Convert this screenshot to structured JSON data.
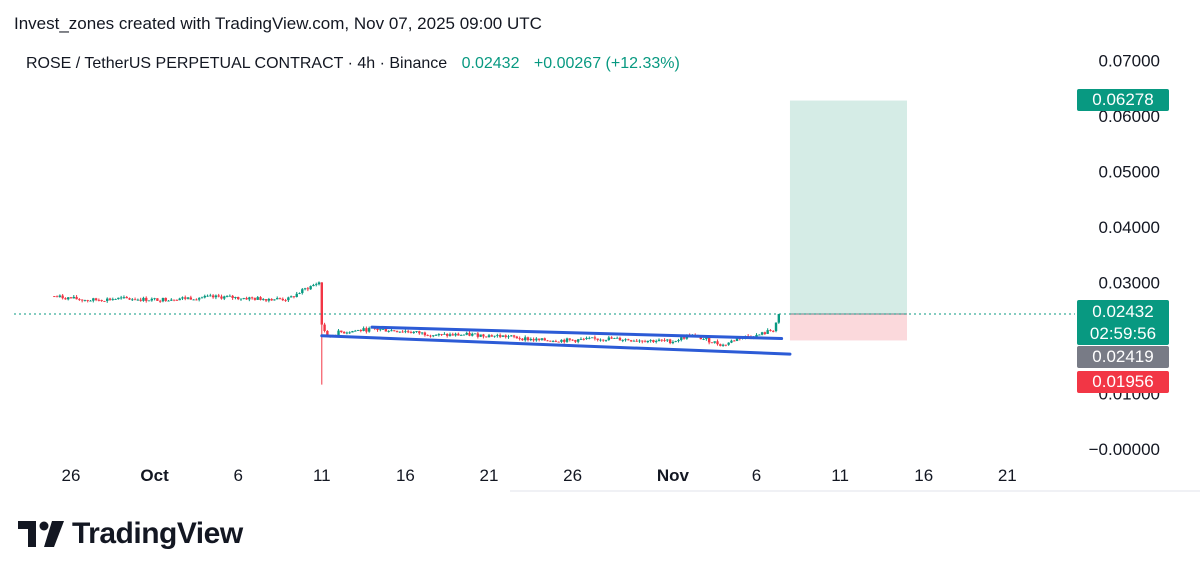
{
  "header": {
    "attribution": "Invest_zones created with TradingView.com, Nov 07, 2025 09:00 UTC"
  },
  "legend": {
    "symbol": "ROSE / TetherUS PERPETUAL CONTRACT · 4h · Binance",
    "price": "0.02432",
    "change": "+0.00267 (+12.33%)"
  },
  "price_tags": {
    "target": "0.06278",
    "last": "0.02432",
    "countdown": "02:59:56",
    "prev": "0.02419",
    "stop": "0.01956"
  },
  "colors": {
    "up": "#089981",
    "down": "#f23645",
    "channel": "#2c5bd6",
    "target_zone": "#d5ece6",
    "stop_zone": "#fbd9dc",
    "tag_gray": "#787b86"
  },
  "footer": {
    "logo_text": "TradingView",
    "logo_icon": "tradingview-logo-icon"
  },
  "chart_data": {
    "type": "candlestick",
    "title": "ROSE / TetherUS PERPETUAL CONTRACT · 4h · Binance",
    "xlabel": "",
    "ylabel": "",
    "x_ticks": [
      {
        "label": "26",
        "date": "2025-09-26"
      },
      {
        "label": "Oct",
        "date": "2025-10-01"
      },
      {
        "label": "6",
        "date": "2025-10-06"
      },
      {
        "label": "11",
        "date": "2025-10-11"
      },
      {
        "label": "16",
        "date": "2025-10-16"
      },
      {
        "label": "21",
        "date": "2025-10-21"
      },
      {
        "label": "26",
        "date": "2025-10-26"
      },
      {
        "label": "Nov",
        "date": "2025-11-01"
      },
      {
        "label": "6",
        "date": "2025-11-06"
      },
      {
        "label": "11",
        "date": "2025-11-11"
      },
      {
        "label": "16",
        "date": "2025-11-16"
      },
      {
        "label": "21",
        "date": "2025-11-21"
      }
    ],
    "y_ticks": [
      "0.07000",
      "0.06000",
      "0.05000",
      "0.04000",
      "0.03000",
      "0.01000",
      "−0.00000"
    ],
    "ylim": [
      -0.0002,
      0.0725
    ],
    "last_price": 0.02432,
    "price_path": [
      [
        "2025-09-25",
        0.0275
      ],
      [
        "2025-09-27",
        0.0268
      ],
      [
        "2025-09-29",
        0.0271
      ],
      [
        "2025-10-01",
        0.0269
      ],
      [
        "2025-10-03",
        0.0272
      ],
      [
        "2025-10-05",
        0.0274
      ],
      [
        "2025-10-07",
        0.0271
      ],
      [
        "2025-10-09",
        0.027
      ],
      [
        "2025-10-10",
        0.0288
      ],
      [
        "2025-10-10T20:00",
        0.03
      ],
      [
        "2025-10-11",
        0.0225
      ],
      [
        "2025-10-11T08:00",
        0.0202
      ],
      [
        "2025-10-12",
        0.021
      ],
      [
        "2025-10-14",
        0.0216
      ],
      [
        "2025-10-16",
        0.0212
      ],
      [
        "2025-10-18",
        0.0205
      ],
      [
        "2025-10-20",
        0.0206
      ],
      [
        "2025-10-22",
        0.0203
      ],
      [
        "2025-10-24",
        0.0196
      ],
      [
        "2025-10-26",
        0.0196
      ],
      [
        "2025-10-28",
        0.0199
      ],
      [
        "2025-10-30",
        0.0196
      ],
      [
        "2025-11-01",
        0.0194
      ],
      [
        "2025-11-02",
        0.0205
      ],
      [
        "2025-11-03",
        0.0197
      ],
      [
        "2025-11-04",
        0.0187
      ],
      [
        "2025-11-05",
        0.0201
      ],
      [
        "2025-11-06",
        0.0204
      ],
      [
        "2025-11-07",
        0.0215
      ],
      [
        "2025-11-07T09:00",
        0.02432
      ]
    ],
    "channel_lines": [
      {
        "from": [
          "2025-10-14",
          0.02195
        ],
        "to": [
          "2025-11-07T12:00",
          0.0199
        ]
      },
      {
        "from": [
          "2025-10-11",
          0.0204
        ],
        "to": [
          "2025-11-08",
          0.0171
        ]
      }
    ],
    "position": {
      "entry": 0.02432,
      "target": 0.06278,
      "stop": 0.01956,
      "start": "2025-11-08",
      "end": "2025-11-15"
    }
  }
}
